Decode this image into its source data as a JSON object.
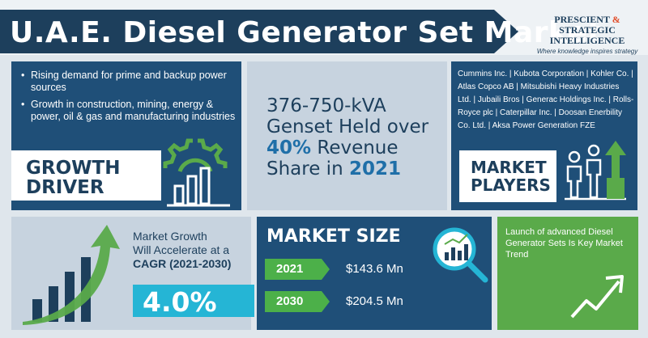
{
  "header": {
    "title": "U.A.E. Diesel Generator Set Market",
    "brand_line1": "PRESCIENT",
    "brand_amp": " & ",
    "brand_line1b": "STRATEGIC",
    "brand_line2": "INTELLIGENCE",
    "brand_tagline": "Where knowledge inspires strategy"
  },
  "growth_driver": {
    "bullets": [
      "Rising demand for prime and backup power sources",
      "Growth in construction, mining, energy & power, oil & gas and manufacturing industries"
    ],
    "label_line1": "GROWTH",
    "label_line2": "DRIVER"
  },
  "genset": {
    "line1": "376-750-kVA",
    "line2": "Genset Held over",
    "highlight_pct": "40%",
    "line3_rest": " Revenue",
    "line4_prefix": "Share in ",
    "highlight_year": "2021"
  },
  "market_players": {
    "companies_text": "Cummins Inc. | Kubota Corporation | Kohler Co. | Atlas Copco AB | Mitsubishi Heavy Industries Ltd. | Jubaili Bros | Generac Holdings Inc. | Rolls-Royce plc | Caterpillar Inc. | Doosan Enerbility Co. Ltd. | Aksa Power Generation FZE",
    "label_line1": "MARKET",
    "label_line2": "PLAYERS"
  },
  "cagr": {
    "line1": "Market Growth",
    "line2": "Will Accelerate at a",
    "line3": "CAGR (2021-2030)",
    "value": "4.0%"
  },
  "market_size": {
    "title": "MARKET SIZE",
    "rows": [
      {
        "year": "2021",
        "value": "$143.6 Mn"
      },
      {
        "year": "2030",
        "value": "$204.5 Mn"
      }
    ]
  },
  "trend": {
    "text": "Launch of advanced Diesel Generator Sets Is Key Market Trend"
  },
  "colors": {
    "navy": "#1d3f5c",
    "panel_blue": "#1f4f78",
    "green": "#5aaa4a",
    "cyan": "#25b5d5",
    "light": "#c7d3df"
  },
  "icons": [
    "gear-chart-icon",
    "people-growth-icon",
    "rising-bars-arrow-icon",
    "magnifier-chart-icon",
    "trend-arrow-icon"
  ]
}
